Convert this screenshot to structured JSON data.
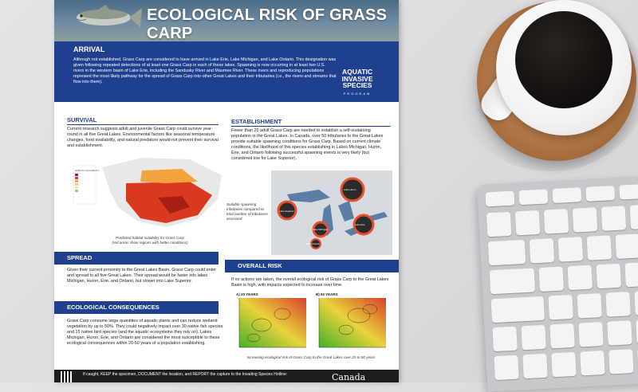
{
  "poster": {
    "title": "ECOLOGICAL RISK OF GRASS CARP",
    "arrival": {
      "heading": "ARRIVAL",
      "text": "Although not established, Grass Carp are considered to have arrived in Lake Erie, Lake Michigan, and Lake Ontario. This designation was given following repeated detections of at least one Grass Carp in each of these lakes. Spawning is now occurring in at least two U.S. rivers in the western basin of Lake Erie, including the Sandusky River and Maumee River. These rivers and reproducing populations represent the most likely pathway for the spread of Grass Carp into other Great Lakes and their tributaries (i.e., the rivers and streams that flow into them)."
    },
    "program": {
      "line1": "AQUATIC",
      "line2": "INVASIVE",
      "line3": "SPECIES",
      "line4": "PROGRAM"
    },
    "survival": {
      "heading": "SURVIVAL",
      "text": "Current research suggests adult and juvenile Grass Carp could survive year-round in all five Great Lakes. Environmental factors like seasonal temperature changes, food availability, and natural predators would not prevent their survival and establishment.",
      "map_caption_line1": "Predicted habitat suitability for Grass Carp",
      "map_caption_line2": "(red areas show regions with better conditions)",
      "legend_title": "HABITAT SUITABILITY"
    },
    "establishment": {
      "heading": "ESTABLISHMENT",
      "text": "Fewer than 20 adult Grass Carp are needed to establish a self-sustaining population in the Great Lakes. In Canada, over 50 tributaries to the Great Lakes provide suitable spawning conditions for Grass Carp. Based on current climate conditions, the likelihood of this species establishing in Lakes Michigan, Huron, Erie, and Ontario following successful spawning events is very likely (but considered low for Lake Superior).",
      "map_note": "Suitable spawning tributaries compared to total number of tributaries assessed",
      "lakes": [
        "Lake Superior",
        "Lake Huron",
        "Lake Michigan",
        "Lake Erie",
        "Lake Ontario"
      ]
    },
    "spread": {
      "heading": "SPREAD",
      "text": "Given their current proximity to the Great Lakes Basin, Grass Carp could enter and spread to all five Great Lakes. Their spread would be faster into lakes Michigan, Huron, Erie, and Ontario, but slower into Lake Superior."
    },
    "overall": {
      "heading": "OVERALL RISK",
      "text": "If no actions are taken, the overall ecological risk of Grass Carp to the Great Lakes Basin is high, with impacts expected to increase over time.",
      "chart_a_title": "A) 20 YEARS",
      "chart_b_title": "B) 50 YEARS",
      "caption": "Increasing ecological risk of Grass Carp to the Great Lakes over 20 to 50 years"
    },
    "consequences": {
      "heading": "ECOLOGICAL CONSEQUENCES",
      "text": "Grass Carp consume large quantities of aquatic plants and can reduce wetland vegetation by up to 50%. They could negatively impact over 30 native fish species and 15 native bird species (and the aquatic ecosystems they rely on). Lakes Michigan, Huron, Erie, and Ontario are considered the most susceptible to these ecological consequences within 20-50 years of a population establishing."
    },
    "footer": {
      "text": "If caught, KEEP the specimen, DOCUMENT the location, and REPORT the capture to the Invading Species Hotline:",
      "brand": "Canada"
    }
  },
  "colors": {
    "navy": "#1f3f8f",
    "risk_red": "#d9402b",
    "risk_green": "#43b02a",
    "risk_yellow": "#e8d33c"
  }
}
